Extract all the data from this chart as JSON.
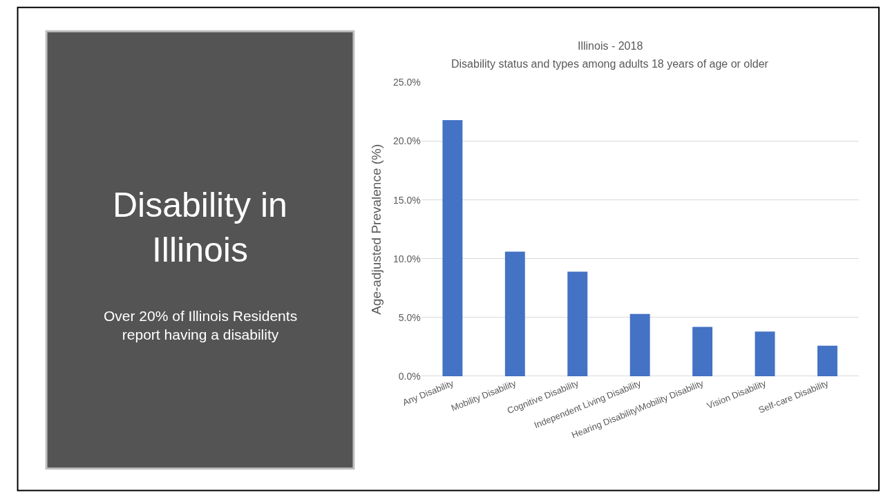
{
  "chart_data": [
    {
      "type": "other",
      "title": "Disability in Illinois",
      "subtitle": "Over 20% of Illinois Residents report having a disability"
    },
    {
      "type": "bar",
      "title": "Illinois - 2018",
      "subtitle": "Disability status and types among adults 18 years of age or older",
      "ylabel": "Age-adjusted Prevalence (%)",
      "categories": [
        "Any Disability",
        "Mobility Disability",
        "Cognitive Disability",
        "Independent Living Disability",
        "Hearing Disability\\Mobility Disability",
        "Vision Disability",
        "Self-care Disability"
      ],
      "values": [
        21.8,
        10.6,
        8.9,
        5.3,
        4.2,
        3.8,
        2.6
      ],
      "color": "#4472c4",
      "ylim": [
        0,
        25
      ],
      "yticks": [
        {
          "value": 0,
          "label": "0.0%"
        },
        {
          "value": 5,
          "label": "5.0%"
        },
        {
          "value": 10,
          "label": "10.0%"
        },
        {
          "value": 15,
          "label": "15.0%"
        },
        {
          "value": 20,
          "label": "20.0%"
        },
        {
          "value": 25,
          "label": "25.0%"
        }
      ],
      "grid": "y"
    }
  ]
}
